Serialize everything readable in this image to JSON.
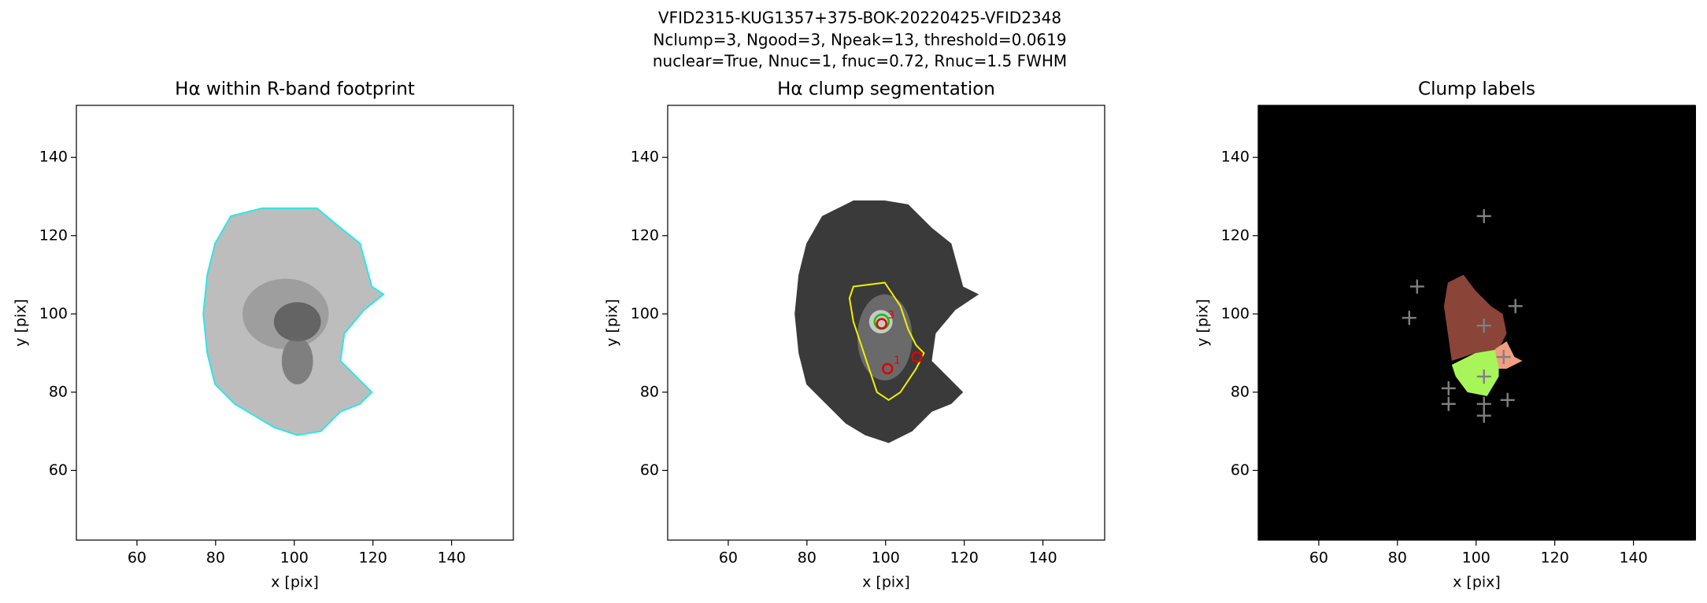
{
  "title": [
    "VFID2315-KUG1357+375-BOK-20220425-VFID2348",
    "Nclump=3, Ngood=3, Npeak=13, threshold=0.0619",
    "nuclear=True, Nnuc=1, fnuc=0.72, Rnuc=1.5 FWHM"
  ],
  "chart_data": [
    {
      "type": "image",
      "title": "Hα within R-band footprint",
      "xlabel": "x [pix]",
      "ylabel": "y [pix]",
      "xlim": [
        44.6,
        155.7
      ],
      "ylim": [
        42.2,
        153.3
      ],
      "xticks": [
        60,
        80,
        100,
        120,
        140
      ],
      "yticks": [
        60,
        80,
        100,
        120,
        140
      ]
    },
    {
      "type": "image",
      "title": "Hα clump segmentation",
      "xlabel": "x [pix]",
      "ylabel": "y [pix]",
      "xlim": [
        44.6,
        155.7
      ],
      "ylim": [
        42.2,
        153.3
      ],
      "xticks": [
        60,
        80,
        100,
        120,
        140
      ],
      "yticks": [
        60,
        80,
        100,
        120,
        140
      ],
      "points": [
        {
          "marker": "o",
          "color": "#00c800",
          "x": [
            99
          ],
          "y": [
            98
          ]
        },
        {
          "marker": "o",
          "color": "#e00000",
          "x": [
            100.5,
            108,
            99
          ],
          "y": [
            86,
            89,
            97.5
          ],
          "labels": [
            "1",
            null,
            "3"
          ]
        }
      ]
    },
    {
      "type": "image",
      "title": "Clump labels",
      "xlabel": "x [pix]",
      "ylabel": "y [pix]",
      "xlim": [
        44.6,
        155.7
      ],
      "ylim": [
        42.2,
        153.3
      ],
      "xticks": [
        60,
        80,
        100,
        120,
        140
      ],
      "yticks": [
        60,
        80,
        100,
        120,
        140
      ],
      "points": [
        {
          "marker": "+",
          "color": "#808080",
          "x": [
            102,
            85,
            83,
            110,
            102,
            93,
            93,
            102,
            102,
            108,
            102,
            107
          ],
          "y": [
            125,
            107,
            99,
            102,
            97,
            81,
            77,
            77,
            74,
            78,
            84,
            89
          ]
        }
      ]
    }
  ]
}
